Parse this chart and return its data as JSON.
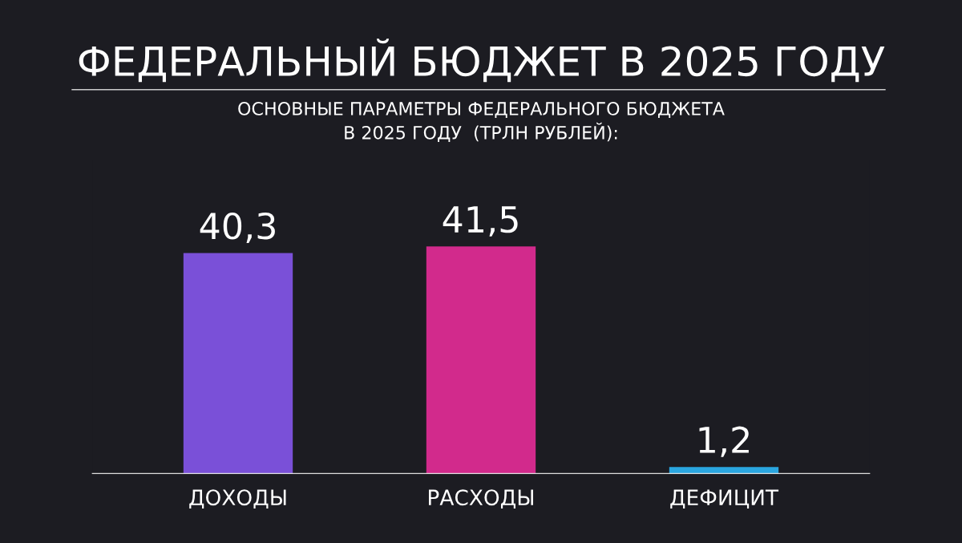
{
  "chart_data": {
    "type": "bar",
    "title": "ФЕДЕРАЛЬНЫЙ БЮДЖЕТ В 2025 ГОДУ",
    "subtitle": "ОСНОВНЫЕ ПАРАМЕТРЫ ФЕДЕРАЛЬНОГО БЮДЖЕТА\nВ 2025 ГОДУ  (ТРЛН РУБЛЕЙ):",
    "categories": [
      "ДОХОДЫ",
      "РАСХОДЫ",
      "ДЕФИЦИТ"
    ],
    "values": [
      40.3,
      41.5,
      1.2
    ],
    "colors": [
      "#7a50d8",
      "#d22a8c",
      "#2aa6e0"
    ],
    "value_labels": [
      "40,3",
      "41,5",
      "1,2"
    ],
    "grid": false,
    "legend": false
  }
}
